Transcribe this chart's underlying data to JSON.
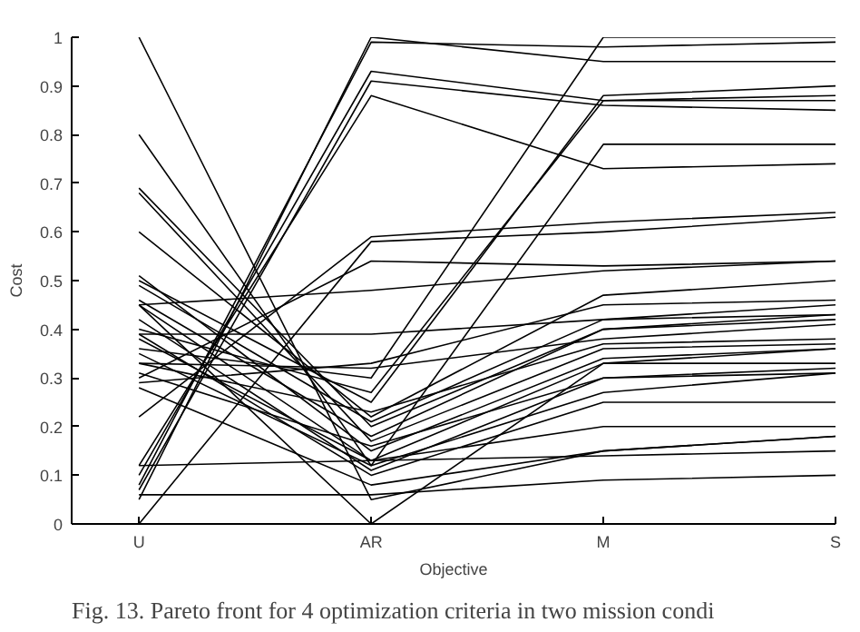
{
  "chart_data": {
    "type": "line",
    "xlabel": "Objective",
    "ylabel": "Cost",
    "categories": [
      "U",
      "AR",
      "M",
      "S"
    ],
    "ylim": [
      0,
      1
    ],
    "yticks": [
      0,
      0.1,
      0.2,
      0.3,
      0.4,
      0.5,
      0.6,
      0.7,
      0.8,
      0.9,
      1
    ],
    "line_style": "solid",
    "annotations": [
      "Fig. 13. Pareto front for 4 optimization criteria in two mission condi"
    ],
    "series": [
      {
        "color": "#000000",
        "values": [
          0.05,
          1.0,
          0.95,
          0.95
        ]
      },
      {
        "color": "#000000",
        "values": [
          0.08,
          0.99,
          0.98,
          0.99
        ]
      },
      {
        "color": "#000000",
        "values": [
          0.1,
          0.93,
          0.87,
          0.87
        ]
      },
      {
        "color": "#000000",
        "values": [
          0.07,
          0.91,
          0.86,
          0.85
        ]
      },
      {
        "color": "#000000",
        "values": [
          0.12,
          0.88,
          0.73,
          0.74
        ]
      },
      {
        "color": "#000000",
        "values": [
          0.0,
          0.58,
          0.6,
          0.63
        ]
      },
      {
        "color": "#000000",
        "values": [
          0.22,
          0.59,
          0.62,
          0.64
        ]
      },
      {
        "color": "#000000",
        "values": [
          0.3,
          0.54,
          0.53,
          0.54
        ]
      },
      {
        "color": "#000000",
        "values": [
          0.45,
          0.48,
          0.52,
          0.54
        ]
      },
      {
        "color": "#000000",
        "values": [
          0.39,
          0.39,
          0.42,
          0.43
        ]
      },
      {
        "color": "#000000",
        "values": [
          1.0,
          0.05,
          0.15,
          0.18
        ]
      },
      {
        "color": "#000000",
        "values": [
          0.8,
          0.12,
          0.27,
          0.31
        ]
      },
      {
        "color": "#000000",
        "values": [
          0.69,
          0.2,
          0.4,
          0.42
        ]
      },
      {
        "color": "#000000",
        "values": [
          0.68,
          0.17,
          0.36,
          0.37
        ]
      },
      {
        "color": "#000000",
        "values": [
          0.6,
          0.22,
          0.47,
          0.5
        ]
      },
      {
        "color": "#000000",
        "values": [
          0.51,
          0.15,
          0.34,
          0.36
        ]
      },
      {
        "color": "#000000",
        "values": [
          0.49,
          0.21,
          0.42,
          0.45
        ]
      },
      {
        "color": "#000000",
        "values": [
          0.46,
          0.18,
          0.4,
          0.43
        ]
      },
      {
        "color": "#000000",
        "values": [
          0.45,
          0.13,
          0.33,
          0.36
        ]
      },
      {
        "color": "#000000",
        "values": [
          0.42,
          0.11,
          0.3,
          0.31
        ]
      },
      {
        "color": "#000000",
        "values": [
          0.39,
          0.1,
          0.25,
          0.25
        ]
      },
      {
        "color": "#000000",
        "values": [
          0.38,
          0.13,
          0.2,
          0.2
        ]
      },
      {
        "color": "#000000",
        "values": [
          0.33,
          0.32,
          0.38,
          0.41
        ]
      },
      {
        "color": "#000000",
        "values": [
          0.29,
          0.33,
          0.45,
          0.46
        ]
      },
      {
        "color": "#000000",
        "values": [
          0.28,
          0.08,
          0.15,
          0.18
        ]
      },
      {
        "color": "#000000",
        "values": [
          0.12,
          0.13,
          0.14,
          0.15
        ]
      },
      {
        "color": "#000000",
        "values": [
          0.06,
          0.06,
          0.09,
          0.1
        ]
      },
      {
        "color": "#000000",
        "values": [
          0.45,
          0.0,
          0.33,
          0.33
        ]
      },
      {
        "color": "#000000",
        "values": [
          0.36,
          0.3,
          1.0,
          1.0
        ]
      },
      {
        "color": "#000000",
        "values": [
          0.5,
          0.25,
          0.88,
          0.9
        ]
      },
      {
        "color": "#000000",
        "values": [
          0.4,
          0.27,
          0.87,
          0.88
        ]
      },
      {
        "color": "#000000",
        "values": [
          0.35,
          0.12,
          0.78,
          0.78
        ]
      },
      {
        "color": "#000000",
        "values": [
          0.33,
          0.23,
          0.37,
          0.38
        ]
      },
      {
        "color": "#000000",
        "values": [
          0.31,
          0.16,
          0.3,
          0.32
        ]
      }
    ]
  }
}
